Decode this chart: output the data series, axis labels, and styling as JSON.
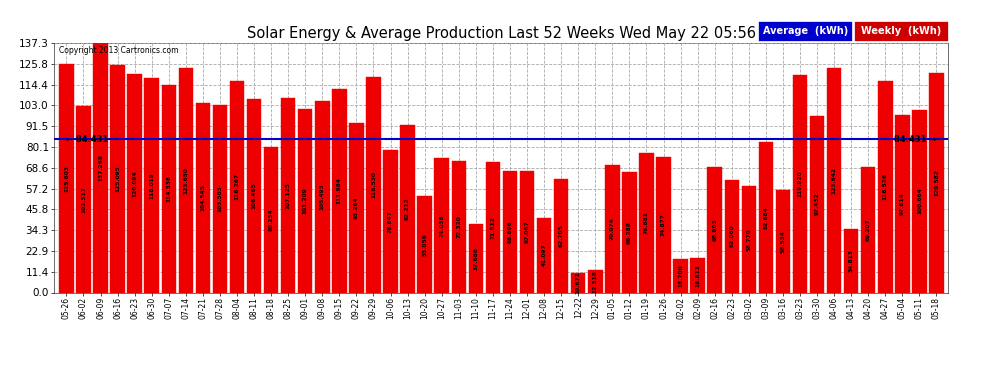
{
  "title": "Solar Energy & Average Production Last 52 Weeks Wed May 22 05:56",
  "copyright": "Copyright 2013 Cartronics.com",
  "average_value": 84.431,
  "bar_color": "#ee0000",
  "average_line_color": "#0000cc",
  "background_color": "#ffffff",
  "grid_color": "#aaaaaa",
  "legend_average_bg": "#0000cc",
  "legend_weekly_bg": "#cc0000",
  "categories": [
    "05-26",
    "06-02",
    "06-09",
    "06-16",
    "06-23",
    "06-30",
    "07-07",
    "07-14",
    "07-21",
    "07-28",
    "08-04",
    "08-11",
    "08-18",
    "08-25",
    "09-01",
    "09-08",
    "09-15",
    "09-22",
    "09-29",
    "10-06",
    "10-13",
    "10-20",
    "10-27",
    "11-03",
    "11-10",
    "11-17",
    "11-24",
    "12-01",
    "12-08",
    "12-15",
    "12-22",
    "12-29",
    "01-05",
    "01-12",
    "01-19",
    "01-26",
    "02-02",
    "02-09",
    "02-16",
    "02-23",
    "03-02",
    "03-09",
    "03-16",
    "03-23",
    "03-30",
    "04-06",
    "04-13",
    "04-20",
    "04-27",
    "05-04",
    "05-11",
    "05-18"
  ],
  "values": [
    125.603,
    102.517,
    137.268,
    125.095,
    120.094,
    118.019,
    114.336,
    123.65,
    104.545,
    103.503,
    116.267,
    106.465,
    80.234,
    107.125,
    101.209,
    105.493,
    111.984,
    93.264,
    118.53,
    78.647,
    92.212,
    53.056,
    74.038,
    72.32,
    37.688,
    71.812,
    66.696,
    67.067,
    41.097,
    62.705,
    10.671,
    12.318,
    70.074,
    66.288,
    76.881,
    74.877,
    18.7,
    18.813,
    68.903,
    62.06,
    58.77,
    82.684,
    56.534,
    119.92,
    97.432,
    123.642,
    34.813,
    69.207,
    116.526,
    97.614,
    100.664,
    120.582
  ],
  "ylim": [
    0.0,
    137.3
  ],
  "yticks": [
    0.0,
    11.4,
    22.9,
    34.3,
    45.8,
    57.2,
    68.6,
    80.1,
    91.5,
    103.0,
    114.4,
    125.8,
    137.3
  ]
}
